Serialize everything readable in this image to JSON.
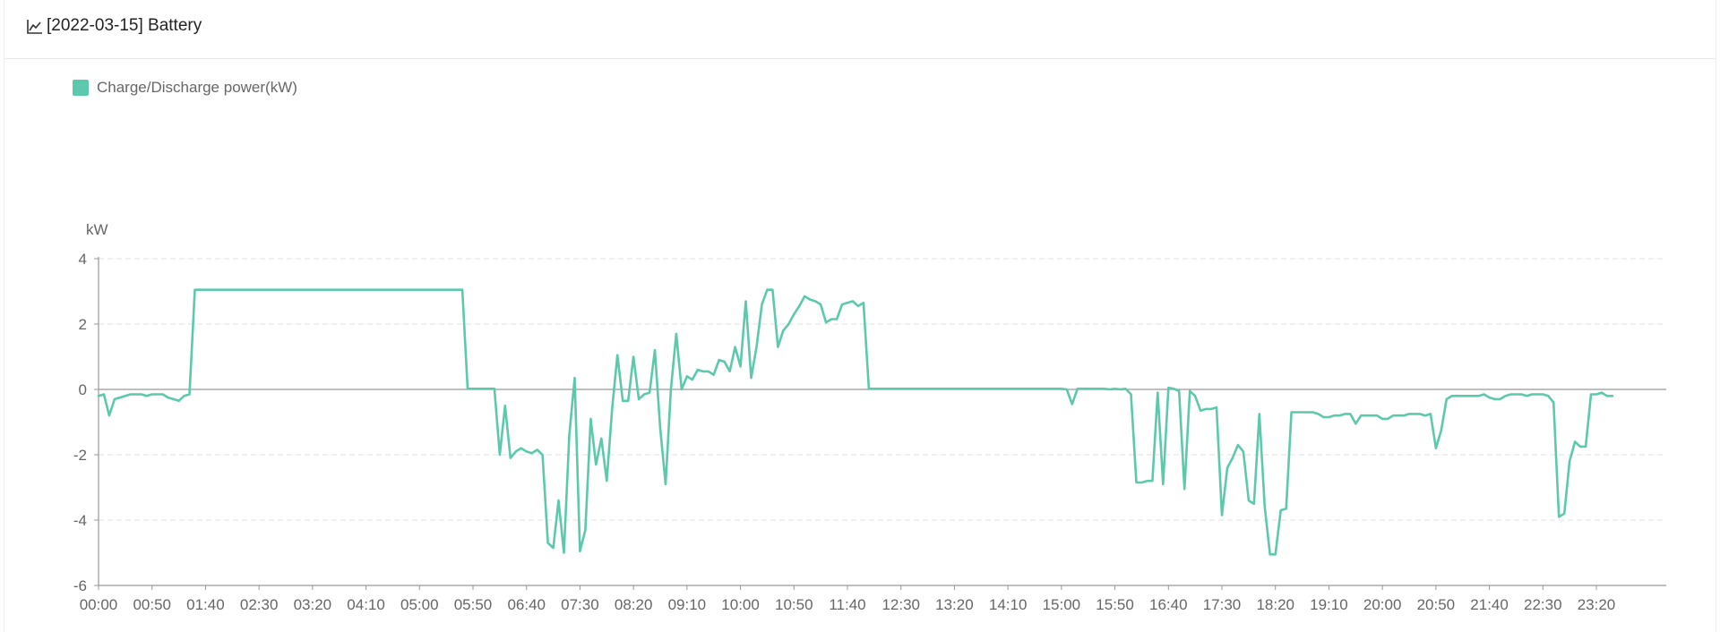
{
  "header": {
    "title": "[2022-03-15] Battery",
    "icon": "line-chart-icon"
  },
  "colors": {
    "series": "#5cc9ac",
    "axis": "#999999",
    "grid": "#e0e0e0",
    "text": "#666666"
  },
  "chart_data": {
    "type": "line",
    "title": "",
    "xlabel": "",
    "ylabel": "kW",
    "ylim": [
      -6,
      4
    ],
    "yticks": [
      4,
      2,
      0,
      -2,
      -4,
      -6
    ],
    "xticks": [
      "00:00",
      "00:50",
      "01:40",
      "02:30",
      "03:20",
      "04:10",
      "05:00",
      "05:50",
      "06:40",
      "07:30",
      "08:20",
      "09:10",
      "10:00",
      "10:50",
      "11:40",
      "12:30",
      "13:20",
      "14:10",
      "15:00",
      "15:50",
      "16:40",
      "17:30",
      "18:20",
      "19:10",
      "20:00",
      "20:50",
      "21:40",
      "22:30",
      "23:20"
    ],
    "grid": "horizontal-dashed",
    "legend_position": "top-left",
    "series": [
      {
        "name": "Charge/Discharge power(kW)",
        "points": [
          [
            "00:00",
            -0.2
          ],
          [
            "00:05",
            -0.15
          ],
          [
            "00:10",
            -0.8
          ],
          [
            "00:15",
            -0.3
          ],
          [
            "00:20",
            -0.25
          ],
          [
            "00:25",
            -0.2
          ],
          [
            "00:30",
            -0.15
          ],
          [
            "00:35",
            -0.15
          ],
          [
            "00:40",
            -0.15
          ],
          [
            "00:45",
            -0.2
          ],
          [
            "00:50",
            -0.15
          ],
          [
            "00:55",
            -0.15
          ],
          [
            "01:00",
            -0.15
          ],
          [
            "01:05",
            -0.25
          ],
          [
            "01:10",
            -0.3
          ],
          [
            "01:15",
            -0.35
          ],
          [
            "01:20",
            -0.2
          ],
          [
            "01:25",
            -0.15
          ],
          [
            "01:30",
            3.05
          ],
          [
            "02:30",
            3.05
          ],
          [
            "03:30",
            3.05
          ],
          [
            "04:30",
            3.05
          ],
          [
            "05:30",
            3.05
          ],
          [
            "05:40",
            3.05
          ],
          [
            "05:45",
            0.02
          ],
          [
            "06:00",
            0.02
          ],
          [
            "06:10",
            0.02
          ],
          [
            "06:15",
            -2.0
          ],
          [
            "06:20",
            -0.5
          ],
          [
            "06:25",
            -2.1
          ],
          [
            "06:30",
            -1.9
          ],
          [
            "06:35",
            -1.8
          ],
          [
            "06:40",
            -1.9
          ],
          [
            "06:45",
            -1.95
          ],
          [
            "06:50",
            -1.85
          ],
          [
            "06:55",
            -2.0
          ],
          [
            "07:00",
            -4.7
          ],
          [
            "07:05",
            -4.85
          ],
          [
            "07:10",
            -3.4
          ],
          [
            "07:15",
            -5.0
          ],
          [
            "07:20",
            -1.4
          ],
          [
            "07:25",
            0.35
          ],
          [
            "07:30",
            -4.95
          ],
          [
            "07:35",
            -4.3
          ],
          [
            "07:40",
            -0.9
          ],
          [
            "07:45",
            -2.3
          ],
          [
            "07:50",
            -1.5
          ],
          [
            "07:55",
            -2.8
          ],
          [
            "08:00",
            -0.6
          ],
          [
            "08:05",
            1.05
          ],
          [
            "08:10",
            -0.35
          ],
          [
            "08:15",
            -0.35
          ],
          [
            "08:20",
            1.0
          ],
          [
            "08:25",
            -0.3
          ],
          [
            "08:30",
            -0.15
          ],
          [
            "08:35",
            -0.1
          ],
          [
            "08:40",
            1.2
          ],
          [
            "08:45",
            -1.2
          ],
          [
            "08:50",
            -2.9
          ],
          [
            "08:55",
            0.0
          ],
          [
            "09:00",
            1.7
          ],
          [
            "09:05",
            0.0
          ],
          [
            "09:10",
            0.4
          ],
          [
            "09:15",
            0.3
          ],
          [
            "09:20",
            0.6
          ],
          [
            "09:25",
            0.55
          ],
          [
            "09:30",
            0.55
          ],
          [
            "09:35",
            0.45
          ],
          [
            "09:40",
            0.9
          ],
          [
            "09:45",
            0.85
          ],
          [
            "09:50",
            0.55
          ],
          [
            "09:55",
            1.3
          ],
          [
            "10:00",
            0.7
          ],
          [
            "10:05",
            2.7
          ],
          [
            "10:10",
            0.35
          ],
          [
            "10:15",
            1.3
          ],
          [
            "10:20",
            2.6
          ],
          [
            "10:25",
            3.05
          ],
          [
            "10:30",
            3.05
          ],
          [
            "10:35",
            1.3
          ],
          [
            "10:40",
            1.8
          ],
          [
            "10:45",
            2.0
          ],
          [
            "10:50",
            2.3
          ],
          [
            "10:55",
            2.55
          ],
          [
            "11:00",
            2.85
          ],
          [
            "11:05",
            2.75
          ],
          [
            "11:10",
            2.7
          ],
          [
            "11:15",
            2.6
          ],
          [
            "11:20",
            2.05
          ],
          [
            "11:25",
            2.15
          ],
          [
            "11:30",
            2.15
          ],
          [
            "11:35",
            2.6
          ],
          [
            "11:40",
            2.65
          ],
          [
            "11:45",
            2.7
          ],
          [
            "11:50",
            2.55
          ],
          [
            "11:55",
            2.65
          ],
          [
            "12:00",
            0.02
          ],
          [
            "13:00",
            0.02
          ],
          [
            "14:00",
            0.02
          ],
          [
            "15:00",
            0.02
          ],
          [
            "15:05",
            0.0
          ],
          [
            "15:10",
            -0.45
          ],
          [
            "15:15",
            0.02
          ],
          [
            "15:30",
            0.02
          ],
          [
            "15:40",
            0.02
          ],
          [
            "15:45",
            0.0
          ],
          [
            "15:50",
            0.02
          ],
          [
            "15:55",
            0.0
          ],
          [
            "16:00",
            0.02
          ],
          [
            "16:05",
            -0.15
          ],
          [
            "16:10",
            -2.85
          ],
          [
            "16:15",
            -2.85
          ],
          [
            "16:20",
            -2.8
          ],
          [
            "16:25",
            -2.8
          ],
          [
            "16:30",
            -0.1
          ],
          [
            "16:35",
            -2.9
          ],
          [
            "16:40",
            0.05
          ],
          [
            "16:45",
            0.02
          ],
          [
            "16:50",
            -0.05
          ],
          [
            "16:55",
            -3.05
          ],
          [
            "17:00",
            -0.05
          ],
          [
            "17:05",
            -0.2
          ],
          [
            "17:10",
            -0.65
          ],
          [
            "17:15",
            -0.6
          ],
          [
            "17:20",
            -0.6
          ],
          [
            "17:25",
            -0.55
          ],
          [
            "17:30",
            -3.85
          ],
          [
            "17:35",
            -2.4
          ],
          [
            "17:40",
            -2.1
          ],
          [
            "17:45",
            -1.7
          ],
          [
            "17:50",
            -1.9
          ],
          [
            "17:55",
            -3.4
          ],
          [
            "18:00",
            -3.5
          ],
          [
            "18:05",
            -0.75
          ],
          [
            "18:10",
            -3.6
          ],
          [
            "18:15",
            -5.05
          ],
          [
            "18:20",
            -5.05
          ],
          [
            "18:25",
            -3.7
          ],
          [
            "18:30",
            -3.65
          ],
          [
            "18:35",
            -0.7
          ],
          [
            "18:40",
            -0.7
          ],
          [
            "18:45",
            -0.7
          ],
          [
            "18:50",
            -0.7
          ],
          [
            "18:55",
            -0.7
          ],
          [
            "19:00",
            -0.75
          ],
          [
            "19:05",
            -0.85
          ],
          [
            "19:10",
            -0.85
          ],
          [
            "19:15",
            -0.8
          ],
          [
            "19:20",
            -0.8
          ],
          [
            "19:25",
            -0.75
          ],
          [
            "19:30",
            -0.75
          ],
          [
            "19:35",
            -1.05
          ],
          [
            "19:40",
            -0.8
          ],
          [
            "19:45",
            -0.8
          ],
          [
            "19:50",
            -0.8
          ],
          [
            "19:55",
            -0.8
          ],
          [
            "20:00",
            -0.9
          ],
          [
            "20:05",
            -0.9
          ],
          [
            "20:10",
            -0.8
          ],
          [
            "20:15",
            -0.8
          ],
          [
            "20:20",
            -0.8
          ],
          [
            "20:25",
            -0.75
          ],
          [
            "20:30",
            -0.75
          ],
          [
            "20:35",
            -0.75
          ],
          [
            "20:40",
            -0.8
          ],
          [
            "20:45",
            -0.75
          ],
          [
            "20:50",
            -1.8
          ],
          [
            "20:55",
            -1.25
          ],
          [
            "21:00",
            -0.3
          ],
          [
            "21:05",
            -0.2
          ],
          [
            "21:10",
            -0.2
          ],
          [
            "21:15",
            -0.2
          ],
          [
            "21:20",
            -0.2
          ],
          [
            "21:25",
            -0.2
          ],
          [
            "21:30",
            -0.2
          ],
          [
            "21:35",
            -0.15
          ],
          [
            "21:40",
            -0.25
          ],
          [
            "21:45",
            -0.3
          ],
          [
            "21:50",
            -0.3
          ],
          [
            "21:55",
            -0.2
          ],
          [
            "22:00",
            -0.15
          ],
          [
            "22:05",
            -0.15
          ],
          [
            "22:10",
            -0.15
          ],
          [
            "22:15",
            -0.2
          ],
          [
            "22:20",
            -0.15
          ],
          [
            "22:25",
            -0.15
          ],
          [
            "22:30",
            -0.15
          ],
          [
            "22:35",
            -0.2
          ],
          [
            "22:40",
            -0.4
          ],
          [
            "22:45",
            -3.9
          ],
          [
            "22:50",
            -3.8
          ],
          [
            "22:55",
            -2.2
          ],
          [
            "23:00",
            -1.6
          ],
          [
            "23:05",
            -1.75
          ],
          [
            "23:10",
            -1.75
          ],
          [
            "23:15",
            -0.15
          ],
          [
            "23:20",
            -0.15
          ],
          [
            "23:25",
            -0.1
          ],
          [
            "23:30",
            -0.2
          ],
          [
            "23:35",
            -0.2
          ]
        ]
      }
    ]
  }
}
